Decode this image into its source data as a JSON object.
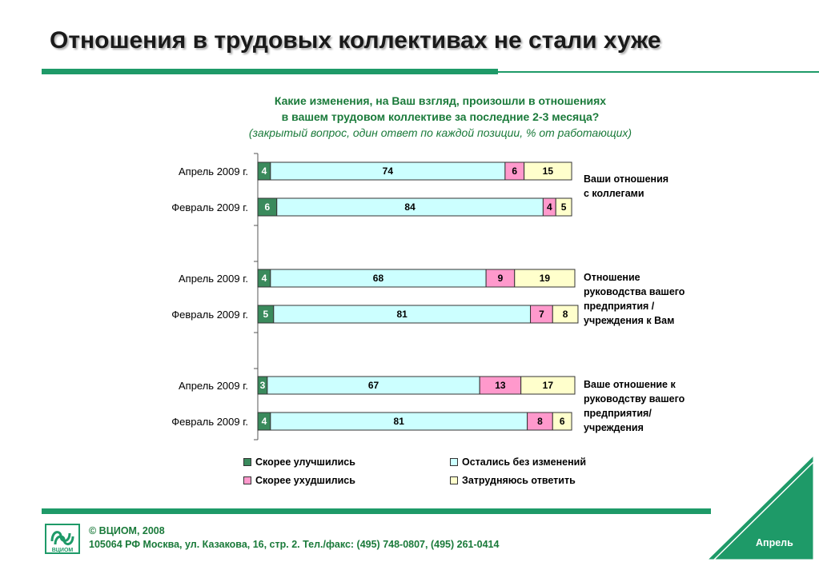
{
  "slide": {
    "title": "Отношения в трудовых коллективах не стали хуже"
  },
  "question": {
    "line1": "Какие изменения, на Ваш взгляд, произошли в отношениях",
    "line2": "в вашем трудовом коллективе за последние 2-3 месяца?",
    "line3": "(закрытый вопрос, один ответ по каждой позиции, % от работающих)"
  },
  "chart_data": {
    "type": "bar",
    "orientation": "horizontal",
    "stacked": true,
    "categories": [
      "Апрель 2009 г.",
      "Февраль 2009 г.",
      "Апрель 2009 г.",
      "Февраль 2009 г.",
      "Апрель 2009 г.",
      "Февраль 2009 г."
    ],
    "groups": [
      {
        "label": "Ваши отношения\nс коллегами"
      },
      {
        "label": "Отношение\nруководства вашего\nпредприятия /\nучреждения к Вам"
      },
      {
        "label": "Ваше отношение к\nруководству вашего\nпредприятия/\nучреждения"
      }
    ],
    "series": [
      {
        "name": "Скорее улучшились",
        "color": "#3a8a5c",
        "label_color": "#ffffff",
        "values": [
          4,
          6,
          4,
          5,
          3,
          4
        ]
      },
      {
        "name": "Остались без изменений",
        "color": "#ccffff",
        "label_color": "#000000",
        "values": [
          74,
          84,
          68,
          81,
          67,
          81
        ]
      },
      {
        "name": "Скорее ухудшились",
        "color": "#ff99cc",
        "label_color": "#000000",
        "values": [
          6,
          4,
          9,
          7,
          13,
          8
        ]
      },
      {
        "name": "Затрудняюсь ответить",
        "color": "#ffffcc",
        "label_color": "#000000",
        "values": [
          15,
          5,
          19,
          8,
          17,
          6
        ]
      }
    ],
    "xlim": [
      0,
      100
    ],
    "legend": "bottom"
  },
  "footer": {
    "copyright": "© ВЦИОМ, 2008",
    "address": "105064 РФ Москва, ул. Казакова, 16, стр. 2.  Тел./факс: (495) 748-0807, (495) 261-0414",
    "month": "Апрель",
    "logo_text": "ВЦИОМ"
  }
}
